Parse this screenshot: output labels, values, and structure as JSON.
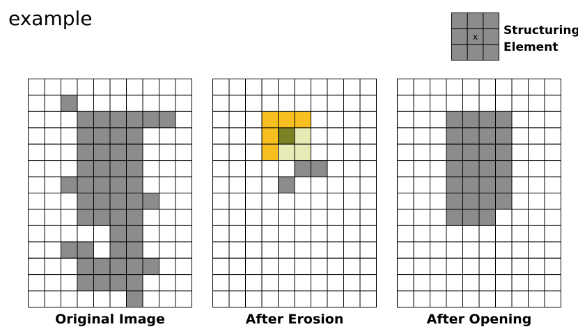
{
  "title": "example",
  "structuring_element": {
    "label_line1": "Structuring",
    "label_line2": "Element",
    "center_mark": "x",
    "rows": 3,
    "cols": 3,
    "fill": "#8c8c8c"
  },
  "grid_size": {
    "rows": 14,
    "cols": 10
  },
  "colors": {
    "grid_line": "#000000",
    "empty": "#ffffff",
    "filled": "#8c8c8c",
    "se_outline": "#f7bf1f",
    "se_overlap": "#e6eab4",
    "se_center": "#7b8125"
  },
  "panels": [
    {
      "caption": "Original Image",
      "filled": [
        [
          1,
          2
        ],
        [
          2,
          3
        ],
        [
          2,
          4
        ],
        [
          2,
          5
        ],
        [
          2,
          6
        ],
        [
          2,
          7
        ],
        [
          2,
          8
        ],
        [
          3,
          3
        ],
        [
          3,
          4
        ],
        [
          3,
          5
        ],
        [
          3,
          6
        ],
        [
          4,
          3
        ],
        [
          4,
          4
        ],
        [
          4,
          5
        ],
        [
          4,
          6
        ],
        [
          5,
          3
        ],
        [
          5,
          4
        ],
        [
          5,
          5
        ],
        [
          5,
          6
        ],
        [
          6,
          2
        ],
        [
          6,
          3
        ],
        [
          6,
          4
        ],
        [
          6,
          5
        ],
        [
          6,
          6
        ],
        [
          7,
          3
        ],
        [
          7,
          4
        ],
        [
          7,
          5
        ],
        [
          7,
          6
        ],
        [
          7,
          7
        ],
        [
          8,
          3
        ],
        [
          8,
          4
        ],
        [
          8,
          5
        ],
        [
          8,
          6
        ],
        [
          9,
          5
        ],
        [
          9,
          6
        ],
        [
          10,
          2
        ],
        [
          10,
          3
        ],
        [
          10,
          5
        ],
        [
          10,
          6
        ],
        [
          11,
          3
        ],
        [
          11,
          4
        ],
        [
          11,
          5
        ],
        [
          11,
          6
        ],
        [
          11,
          7
        ],
        [
          12,
          3
        ],
        [
          12,
          4
        ],
        [
          12,
          5
        ],
        [
          12,
          6
        ],
        [
          13,
          6
        ]
      ],
      "highlight": {
        "orange": [],
        "pale": [],
        "center": []
      }
    },
    {
      "caption": "After Erosion",
      "filled": [
        [
          5,
          5
        ],
        [
          5,
          6
        ],
        [
          6,
          4
        ]
      ],
      "highlight": {
        "orange": [
          [
            2,
            3
          ],
          [
            2,
            4
          ],
          [
            2,
            5
          ],
          [
            3,
            3
          ],
          [
            4,
            3
          ]
        ],
        "pale": [
          [
            3,
            5
          ],
          [
            4,
            4
          ],
          [
            4,
            5
          ]
        ],
        "center": [
          [
            3,
            4
          ]
        ]
      }
    },
    {
      "caption": "After Opening",
      "filled": [
        [
          2,
          3
        ],
        [
          2,
          4
        ],
        [
          2,
          5
        ],
        [
          2,
          6
        ],
        [
          3,
          3
        ],
        [
          3,
          4
        ],
        [
          3,
          5
        ],
        [
          3,
          6
        ],
        [
          4,
          3
        ],
        [
          4,
          4
        ],
        [
          4,
          5
        ],
        [
          4,
          6
        ],
        [
          5,
          3
        ],
        [
          5,
          4
        ],
        [
          5,
          5
        ],
        [
          5,
          6
        ],
        [
          6,
          3
        ],
        [
          6,
          4
        ],
        [
          6,
          5
        ],
        [
          6,
          6
        ],
        [
          7,
          3
        ],
        [
          7,
          4
        ],
        [
          7,
          5
        ],
        [
          7,
          6
        ],
        [
          8,
          3
        ],
        [
          8,
          4
        ],
        [
          8,
          5
        ]
      ],
      "highlight": {
        "orange": [],
        "pale": [],
        "center": []
      }
    }
  ]
}
